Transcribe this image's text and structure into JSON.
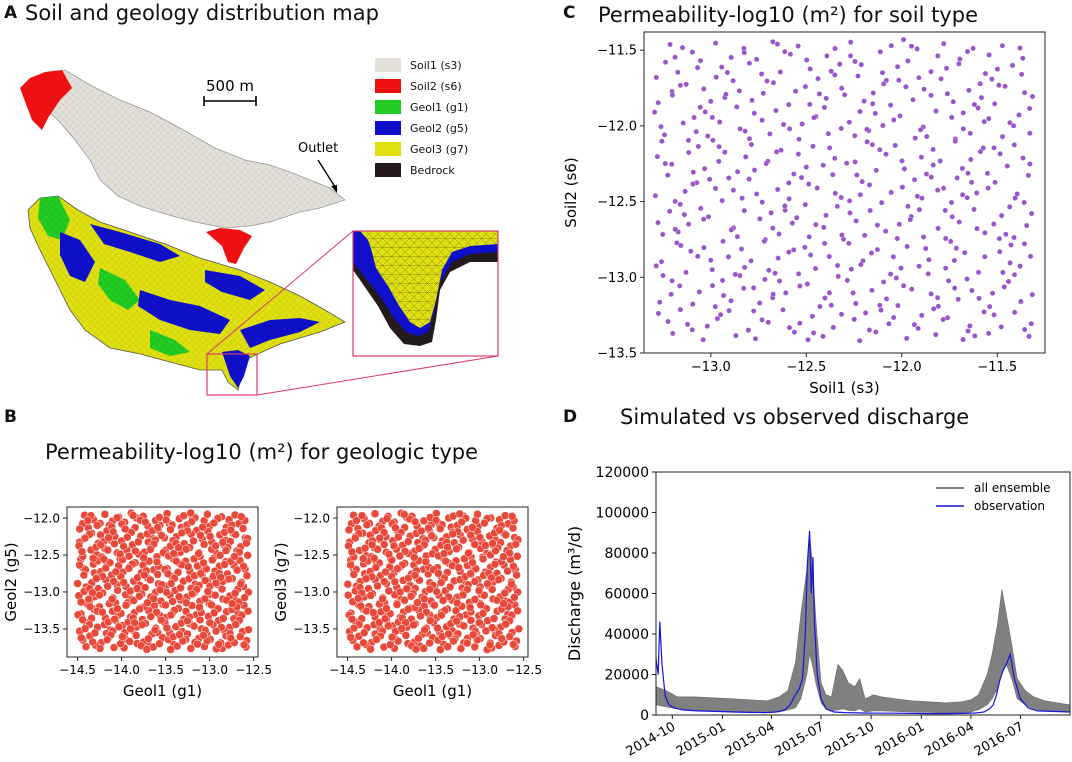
{
  "panels": {
    "A": {
      "letter": "A",
      "title": "Soil and geology distribution map",
      "scale_label": "500 m",
      "outlet_label": "Outlet",
      "legend": [
        {
          "label": "Soil1 (s3)",
          "color": "#e3e0d9"
        },
        {
          "label": "Soil2 (s6)",
          "color": "#ee1111"
        },
        {
          "label": "Geol1 (g1)",
          "color": "#22cc22"
        },
        {
          "label": "Geol2 (g5)",
          "color": "#1010cc"
        },
        {
          "label": "Geol3 (g7)",
          "color": "#e0e010"
        },
        {
          "label": "Bedrock",
          "color": "#231a1e"
        }
      ]
    },
    "B": {
      "letter": "B",
      "title": "Permeability-log10 (m²) for geologic type"
    },
    "C": {
      "letter": "C",
      "title": "Permeability-log10 (m²) for soil type"
    },
    "D": {
      "letter": "D",
      "title": "Simulated vs observed discharge"
    }
  },
  "chart_data": [
    {
      "id": "C",
      "type": "scatter",
      "title": "Permeability-log10 (m²) for soil type",
      "xlabel": "Soil1 (s3)",
      "ylabel": "Soil2 (s6)",
      "xlim": [
        -13.35,
        -11.25
      ],
      "ylim": [
        -13.5,
        -11.38
      ],
      "xticks": [
        -13.0,
        -12.5,
        -12.0,
        -11.5
      ],
      "yticks": [
        -11.5,
        -12.0,
        -12.5,
        -13.0,
        -13.5
      ],
      "xtick_labels": [
        "−13.0",
        "−12.5",
        "−12.0",
        "−11.5"
      ],
      "ytick_labels": [
        "−11.5",
        "−12.0",
        "−12.5",
        "−13.0",
        "−13.5"
      ],
      "sample_range_x": [
        -13.3,
        -11.3
      ],
      "sample_range_y": [
        -13.42,
        -11.43
      ],
      "n_points": 500,
      "color": "#9a55cc"
    },
    {
      "id": "B1",
      "type": "scatter",
      "xlabel": "Geol1 (g1)",
      "ylabel": "Geol2 (g5)",
      "xlim": [
        -14.62,
        -12.45
      ],
      "ylim": [
        -13.88,
        -11.85
      ],
      "xticks": [
        -14.5,
        -14.0,
        -13.5,
        -13.0,
        -12.5
      ],
      "yticks": [
        -12.0,
        -12.5,
        -13.0,
        -13.5
      ],
      "xtick_labels": [
        "−14.5",
        "−14.0",
        "−13.5",
        "−13.0",
        "−12.5"
      ],
      "ytick_labels": [
        "−12.0",
        "−12.5",
        "−13.0",
        "−13.5"
      ],
      "sample_range_x": [
        -14.5,
        -12.55
      ],
      "sample_range_y": [
        -13.78,
        -11.93
      ],
      "n_points": 500,
      "color": "#e8493a"
    },
    {
      "id": "B2",
      "type": "scatter",
      "xlabel": "Geol1 (g1)",
      "ylabel": "Geol3 (g7)",
      "xlim": [
        -14.62,
        -12.45
      ],
      "ylim": [
        -13.88,
        -11.85
      ],
      "xticks": [
        -14.5,
        -14.0,
        -13.5,
        -13.0,
        -12.5
      ],
      "yticks": [
        -12.0,
        -12.5,
        -13.0,
        -13.5
      ],
      "xtick_labels": [
        "−14.5",
        "−14.0",
        "−13.5",
        "−13.0",
        "−12.5"
      ],
      "ytick_labels": [
        "−12.0",
        "−12.5",
        "−13.0",
        "−13.5"
      ],
      "sample_range_x": [
        -14.5,
        -12.55
      ],
      "sample_range_y": [
        -13.78,
        -11.93
      ],
      "n_points": 500,
      "color": "#e8493a"
    },
    {
      "id": "D",
      "type": "line",
      "title": "Simulated vs observed discharge",
      "ylabel": "Discharge (m³/d)",
      "ylim": [
        0,
        120000
      ],
      "yticks": [
        0,
        20000,
        40000,
        60000,
        80000,
        100000,
        120000
      ],
      "ytick_labels": [
        "0",
        "20000",
        "40000",
        "60000",
        "80000",
        "100000",
        "120000"
      ],
      "xlim": [
        "2014-09-01",
        "2016-09-30"
      ],
      "xticks": [
        "2014-10-01",
        "2015-01-01",
        "2015-04-01",
        "2015-07-01",
        "2015-10-01",
        "2016-01-01",
        "2016-04-01",
        "2016-07-01"
      ],
      "xtick_labels": [
        "2014-10",
        "2015-01",
        "2015-04",
        "2015-07",
        "2015-10",
        "2016-01",
        "2016-04",
        "2016-07"
      ],
      "legend": [
        "all ensemble",
        "observation"
      ],
      "legend_position": "top-right",
      "series": [
        {
          "name": "all ensemble",
          "type": "band",
          "color": "#808080",
          "dates": [
            "2014-09-01",
            "2014-09-20",
            "2014-10-10",
            "2014-11-10",
            "2014-12-15",
            "2015-01-20",
            "2015-02-20",
            "2015-03-25",
            "2015-04-15",
            "2015-05-01",
            "2015-05-15",
            "2015-05-25",
            "2015-06-05",
            "2015-06-10",
            "2015-06-15",
            "2015-06-22",
            "2015-07-01",
            "2015-07-10",
            "2015-07-20",
            "2015-08-01",
            "2015-08-10",
            "2015-08-20",
            "2015-09-01",
            "2015-09-10",
            "2015-09-20",
            "2015-10-05",
            "2015-10-20",
            "2015-11-15",
            "2015-12-15",
            "2016-01-15",
            "2016-02-15",
            "2016-03-15",
            "2016-04-01",
            "2016-04-15",
            "2016-05-01",
            "2016-05-10",
            "2016-05-20",
            "2016-05-28",
            "2016-06-05",
            "2016-06-15",
            "2016-06-25",
            "2016-07-10",
            "2016-07-25",
            "2016-08-15",
            "2016-09-30"
          ],
          "lower": [
            5000,
            4000,
            3000,
            2500,
            2000,
            1800,
            1500,
            1300,
            1500,
            2500,
            3500,
            8000,
            20000,
            30000,
            25000,
            15000,
            6000,
            3000,
            2000,
            2500,
            3000,
            2200,
            2000,
            3000,
            1500,
            2000,
            2000,
            1800,
            1500,
            1300,
            1100,
            1200,
            1500,
            2500,
            5000,
            8000,
            13000,
            20000,
            25000,
            18000,
            8000,
            5000,
            3000,
            2000,
            1500
          ],
          "upper": [
            14000,
            12000,
            9000,
            9000,
            8500,
            8000,
            7500,
            7000,
            9000,
            12000,
            26000,
            50000,
            72000,
            90000,
            75000,
            45000,
            16000,
            10000,
            9000,
            25000,
            22000,
            16000,
            14000,
            18000,
            8000,
            10000,
            9000,
            8000,
            7000,
            6500,
            6000,
            6500,
            7500,
            10000,
            20000,
            30000,
            45000,
            62000,
            50000,
            35000,
            18000,
            12000,
            9000,
            7000,
            5000
          ]
        },
        {
          "name": "observation",
          "type": "line",
          "color": "#1515dd",
          "dates": [
            "2014-09-01",
            "2014-09-05",
            "2014-09-08",
            "2014-09-12",
            "2014-09-18",
            "2014-09-25",
            "2014-10-05",
            "2014-10-20",
            "2014-11-15",
            "2014-12-20",
            "2015-01-20",
            "2015-02-20",
            "2015-03-20",
            "2015-04-10",
            "2015-04-25",
            "2015-05-05",
            "2015-05-15",
            "2015-05-22",
            "2015-05-28",
            "2015-06-02",
            "2015-06-06",
            "2015-06-10",
            "2015-06-13",
            "2015-06-16",
            "2015-06-19",
            "2015-06-24",
            "2015-07-01",
            "2015-07-10",
            "2015-07-25",
            "2015-08-15",
            "2015-09-15",
            "2015-10-15",
            "2015-11-15",
            "2015-12-15",
            "2016-01-15",
            "2016-02-15",
            "2016-03-15",
            "2016-04-10",
            "2016-04-25",
            "2016-05-05",
            "2016-05-12",
            "2016-05-18",
            "2016-05-24",
            "2016-05-30",
            "2016-06-05",
            "2016-06-12",
            "2016-06-20",
            "2016-07-01",
            "2016-07-15",
            "2016-08-01",
            "2016-09-30"
          ],
          "values": [
            28000,
            20000,
            46000,
            25000,
            9000,
            5000,
            3500,
            2500,
            2000,
            1800,
            1500,
            1300,
            1200,
            1500,
            2500,
            5000,
            10000,
            13000,
            18000,
            40000,
            75000,
            91000,
            60000,
            78000,
            45000,
            20000,
            8000,
            3000,
            1500,
            1200,
            1000,
            900,
            900,
            800,
            700,
            700,
            800,
            1000,
            1500,
            3000,
            5000,
            10000,
            17000,
            22000,
            25000,
            30000,
            18000,
            8000,
            3500,
            2000,
            1500
          ]
        }
      ]
    }
  ]
}
